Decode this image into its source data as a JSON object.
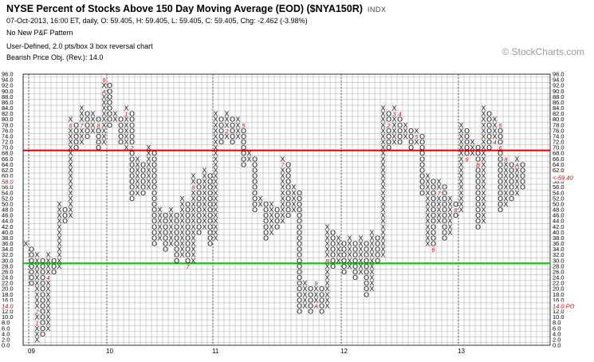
{
  "header": {
    "title": "NYSE Percent of Stocks Above 150 Day Moving Average (EOD) ($NYA150R)",
    "symbol_badge": "INDX",
    "quote_line": "07-Oct-2013, 16:00 ET, daily, O: 59.405, H: 59.405, L: 59.405, C: 59.405, Chg: -2.462 (-3.98%)",
    "pattern_line": "No New P&F Pattern",
    "settings_line": "User-Defined, 2.0 pts/box 3 box reversal chart",
    "objective_line": "Bearish Price Obj. (Rev.): 14.0"
  },
  "brand": "© StockCharts.com",
  "colors": {
    "grid": "#b4b4b4",
    "frame": "#000000",
    "resistance": "#e00000",
    "support": "#00cc00",
    "month_marker": "#cc0000",
    "axis_text": "#000000"
  },
  "chart_data": {
    "type": "point-and-figure",
    "box_size": 2.0,
    "reversal": 3,
    "ylim": [
      0,
      96
    ],
    "y_ticks": [
      0,
      2,
      4,
      6,
      8,
      10,
      12,
      14,
      16,
      18,
      20,
      22,
      24,
      26,
      28,
      30,
      32,
      34,
      36,
      38,
      40,
      42,
      44,
      46,
      48,
      50,
      52,
      54,
      56,
      58,
      60,
      62,
      64,
      66,
      68,
      70,
      72,
      74,
      76,
      78,
      80,
      82,
      84,
      86,
      88,
      90,
      92,
      94,
      96
    ],
    "year_labels": [
      {
        "column": 1,
        "label": "09"
      },
      {
        "column": 15,
        "label": "10"
      },
      {
        "column": 34,
        "label": "11"
      },
      {
        "column": 57,
        "label": "12"
      },
      {
        "column": 78,
        "label": "13"
      }
    ],
    "horizontal_lines": [
      {
        "name": "resistance",
        "value": 69
      },
      {
        "name": "support",
        "value": 29
      }
    ],
    "price_labels": [
      {
        "label": "58.0",
        "value": 58,
        "side": "left"
      },
      {
        "label": "14.0",
        "value": 14,
        "side": "left"
      },
      {
        "label": "<-59.40",
        "value": 59.405,
        "side": "right"
      },
      {
        "label": "14.0 PO",
        "value": 14,
        "side": "right"
      }
    ],
    "columns": [
      {
        "type": "X",
        "low": 36,
        "high": 36
      },
      {
        "type": "O",
        "low": 22,
        "high": 34
      },
      {
        "type": "X",
        "low": 2,
        "high": 32
      },
      {
        "type": "O",
        "low": 4,
        "high": 30
      },
      {
        "type": "X",
        "low": 6,
        "high": 32
      },
      {
        "type": "O",
        "low": 26,
        "high": 30
      },
      {
        "type": "X",
        "low": 28,
        "high": 50
      },
      {
        "type": "O",
        "low": 44,
        "high": 48
      },
      {
        "type": "X",
        "low": 46,
        "high": 80
      },
      {
        "type": "O",
        "low": 70,
        "high": 78
      },
      {
        "type": "X",
        "low": 72,
        "high": 84
      },
      {
        "type": "O",
        "low": 74,
        "high": 82
      },
      {
        "type": "X",
        "low": 76,
        "high": 82
      },
      {
        "type": "O",
        "low": 70,
        "high": 80
      },
      {
        "type": "X",
        "low": 72,
        "high": 94
      },
      {
        "type": "O",
        "low": 78,
        "high": 92
      },
      {
        "type": "X",
        "low": 80,
        "high": 82
      },
      {
        "type": "O",
        "low": 72,
        "high": 80
      },
      {
        "type": "X",
        "low": 70,
        "high": 84
      },
      {
        "type": "O",
        "low": 52,
        "high": 82
      },
      {
        "type": "X",
        "low": 54,
        "high": 66
      },
      {
        "type": "O",
        "low": 54,
        "high": 64
      },
      {
        "type": "X",
        "low": 56,
        "high": 70
      },
      {
        "type": "O",
        "low": 36,
        "high": 68
      },
      {
        "type": "X",
        "low": 38,
        "high": 48
      },
      {
        "type": "O",
        "low": 34,
        "high": 46
      },
      {
        "type": "X",
        "low": 36,
        "high": 48
      },
      {
        "type": "O",
        "low": 30,
        "high": 46
      },
      {
        "type": "X",
        "low": 32,
        "high": 52
      },
      {
        "type": "O",
        "low": 28,
        "high": 50
      },
      {
        "type": "X",
        "low": 30,
        "high": 60
      },
      {
        "type": "O",
        "low": 40,
        "high": 58
      },
      {
        "type": "X",
        "low": 42,
        "high": 62
      },
      {
        "type": "O",
        "low": 36,
        "high": 60
      },
      {
        "type": "X",
        "low": 38,
        "high": 82
      },
      {
        "type": "O",
        "low": 72,
        "high": 80
      },
      {
        "type": "X",
        "low": 74,
        "high": 82
      },
      {
        "type": "O",
        "low": 72,
        "high": 80
      },
      {
        "type": "X",
        "low": 74,
        "high": 80
      },
      {
        "type": "O",
        "low": 64,
        "high": 78
      },
      {
        "type": "X",
        "low": 66,
        "high": 68
      },
      {
        "type": "O",
        "low": 48,
        "high": 66
      },
      {
        "type": "X",
        "low": 50,
        "high": 52
      },
      {
        "type": "O",
        "low": 38,
        "high": 50
      },
      {
        "type": "X",
        "low": 40,
        "high": 50
      },
      {
        "type": "O",
        "low": 42,
        "high": 48
      },
      {
        "type": "X",
        "low": 44,
        "high": 66
      },
      {
        "type": "O",
        "low": 46,
        "high": 64
      },
      {
        "type": "X",
        "low": 48,
        "high": 56
      },
      {
        "type": "O",
        "low": 12,
        "high": 54
      },
      {
        "type": "X",
        "low": 14,
        "high": 22
      },
      {
        "type": "O",
        "low": 12,
        "high": 20
      },
      {
        "type": "X",
        "low": 14,
        "high": 22
      },
      {
        "type": "O",
        "low": 12,
        "high": 20
      },
      {
        "type": "X",
        "low": 14,
        "high": 42
      },
      {
        "type": "O",
        "low": 28,
        "high": 40
      },
      {
        "type": "X",
        "low": 30,
        "high": 38
      },
      {
        "type": "O",
        "low": 26,
        "high": 36
      },
      {
        "type": "X",
        "low": 28,
        "high": 38
      },
      {
        "type": "O",
        "low": 24,
        "high": 36
      },
      {
        "type": "X",
        "low": 26,
        "high": 38
      },
      {
        "type": "O",
        "low": 18,
        "high": 36
      },
      {
        "type": "X",
        "low": 20,
        "high": 40
      },
      {
        "type": "O",
        "low": 30,
        "high": 38
      },
      {
        "type": "X",
        "low": 32,
        "high": 84
      },
      {
        "type": "O",
        "low": 70,
        "high": 82
      },
      {
        "type": "X",
        "low": 72,
        "high": 84
      },
      {
        "type": "O",
        "low": 72,
        "high": 82
      },
      {
        "type": "X",
        "low": 74,
        "high": 78
      },
      {
        "type": "O",
        "low": 70,
        "high": 76
      },
      {
        "type": "X",
        "low": 72,
        "high": 76
      },
      {
        "type": "O",
        "low": 54,
        "high": 74
      },
      {
        "type": "X",
        "low": 36,
        "high": 60
      },
      {
        "type": "O",
        "low": 34,
        "high": 58
      },
      {
        "type": "X",
        "low": 44,
        "high": 58
      },
      {
        "type": "O",
        "low": 38,
        "high": 56
      },
      {
        "type": "X",
        "low": 40,
        "high": 52
      },
      {
        "type": "O",
        "low": 46,
        "high": 50
      },
      {
        "type": "X",
        "low": 48,
        "high": 78
      },
      {
        "type": "O",
        "low": 66,
        "high": 76
      },
      {
        "type": "X",
        "low": 68,
        "high": 72
      },
      {
        "type": "O",
        "low": 42,
        "high": 70
      },
      {
        "type": "X",
        "low": 44,
        "high": 84
      },
      {
        "type": "O",
        "low": 70,
        "high": 82
      },
      {
        "type": "X",
        "low": 72,
        "high": 80
      },
      {
        "type": "O",
        "low": 48,
        "high": 78
      },
      {
        "type": "X",
        "low": 50,
        "high": 66
      },
      {
        "type": "O",
        "low": 52,
        "high": 64
      },
      {
        "type": "X",
        "low": 54,
        "high": 66
      },
      {
        "type": "O",
        "low": 56,
        "high": 64
      }
    ],
    "month_markers": [
      {
        "column": 2,
        "value": 8,
        "label": "1"
      },
      {
        "column": 2,
        "value": 12,
        "label": "2"
      },
      {
        "column": 3,
        "value": 2,
        "label": "3"
      },
      {
        "column": 4,
        "value": 24,
        "label": "4"
      },
      {
        "column": 6,
        "value": 62,
        "label": "5"
      },
      {
        "column": 8,
        "value": 78,
        "label": "6"
      },
      {
        "column": 10,
        "value": 78,
        "label": "7"
      },
      {
        "column": 13,
        "value": 78,
        "label": "8"
      },
      {
        "column": 14,
        "value": 94,
        "label": "9"
      },
      {
        "column": 14,
        "value": 90,
        "label": "A"
      },
      {
        "column": 18,
        "value": 82,
        "label": "1"
      },
      {
        "column": 19,
        "value": 70,
        "label": "2"
      },
      {
        "column": 20,
        "value": 74,
        "label": "3"
      },
      {
        "column": 20,
        "value": 82,
        "label": "4"
      },
      {
        "column": 21,
        "value": 82,
        "label": "5"
      },
      {
        "column": 25,
        "value": 50,
        "label": "6"
      },
      {
        "column": 29,
        "value": 28,
        "label": "7"
      },
      {
        "column": 30,
        "value": 56,
        "label": "8"
      },
      {
        "column": 31,
        "value": 38,
        "label": "9"
      },
      {
        "column": 36,
        "value": 84,
        "label": "1"
      },
      {
        "column": 36,
        "value": 76,
        "label": "2"
      },
      {
        "column": 37,
        "value": 82,
        "label": "3"
      },
      {
        "column": 38,
        "value": 82,
        "label": "4"
      },
      {
        "column": 39,
        "value": 78,
        "label": "5"
      },
      {
        "column": 41,
        "value": 68,
        "label": "6"
      },
      {
        "column": 46,
        "value": 64,
        "label": "7"
      },
      {
        "column": 50,
        "value": 38,
        "label": "8"
      },
      {
        "column": 52,
        "value": 22,
        "label": "9"
      },
      {
        "column": 52,
        "value": 14,
        "label": "A"
      },
      {
        "column": 54,
        "value": 30,
        "label": "B"
      },
      {
        "column": 57,
        "value": 38,
        "label": "C"
      },
      {
        "column": 65,
        "value": 48,
        "label": "1"
      },
      {
        "column": 65,
        "value": 78,
        "label": "2"
      },
      {
        "column": 66,
        "value": 82,
        "label": "3"
      },
      {
        "column": 67,
        "value": 82,
        "label": "4"
      },
      {
        "column": 70,
        "value": 74,
        "label": "5"
      },
      {
        "column": 73,
        "value": 34,
        "label": "6"
      },
      {
        "column": 74,
        "value": 54,
        "label": "7"
      },
      {
        "column": 77,
        "value": 48,
        "label": "8"
      },
      {
        "column": 79,
        "value": 66,
        "label": "9"
      },
      {
        "column": 81,
        "value": 64,
        "label": "B"
      },
      {
        "column": 84,
        "value": 82,
        "label": "2"
      },
      {
        "column": 84,
        "value": 72,
        "label": "4"
      },
      {
        "column": 85,
        "value": 78,
        "label": "5"
      },
      {
        "column": 85,
        "value": 70,
        "label": "6"
      },
      {
        "column": 86,
        "value": 66,
        "label": "8"
      },
      {
        "column": 88,
        "value": 64,
        "label": "A"
      },
      {
        "column": 89,
        "value": 52,
        "label": "9"
      }
    ]
  }
}
